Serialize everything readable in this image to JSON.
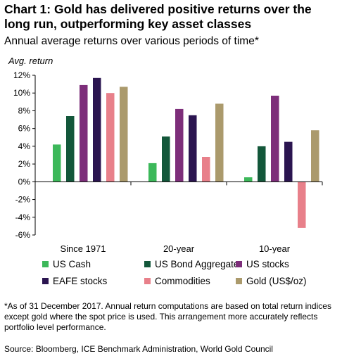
{
  "chart_data": {
    "type": "bar",
    "title": "Chart 1: Gold has delivered positive returns over the long run, outperforming key asset classes",
    "subtitle": "Annual average returns over various periods of time*",
    "ylabel": "Avg. return",
    "xlabel": "",
    "ylim": [
      -6,
      12
    ],
    "yticks": [
      12,
      10,
      8,
      6,
      4,
      2,
      0,
      -2,
      -4,
      -6
    ],
    "ytick_labels": [
      "12%",
      "10%",
      "8%",
      "6%",
      "4%",
      "2%",
      "0%",
      "-2%",
      "-4%",
      "-6%"
    ],
    "categories": [
      "Since 1971",
      "20-year",
      "10-year"
    ],
    "series": [
      {
        "name": "US Cash",
        "color": "#3cb85a",
        "values": [
          4.2,
          2.1,
          0.5
        ]
      },
      {
        "name": "US Bond Aggregate",
        "color": "#13573a",
        "values": [
          7.4,
          5.1,
          4.0
        ]
      },
      {
        "name": "US stocks",
        "color": "#7d2e7a",
        "values": [
          10.9,
          8.2,
          9.7
        ]
      },
      {
        "name": "EAFE stocks",
        "color": "#2b1550",
        "values": [
          11.7,
          7.5,
          4.5
        ]
      },
      {
        "name": "Commodities",
        "color": "#e8808a",
        "values": [
          10.0,
          2.8,
          -5.2
        ]
      },
      {
        "name": "Gold (US$/oz)",
        "color": "#ab9a6c",
        "values": [
          10.7,
          8.8,
          5.8
        ]
      }
    ],
    "grid": false,
    "legend_position": "bottom"
  },
  "footnote": "*As of 31 December 2017. Annual return computations are based on total return indices except gold where the spot price is used. This arrangement more accurately reflects portfolio level performance.",
  "source": "Source: Bloomberg, ICE Benchmark Administration, World Gold Council"
}
